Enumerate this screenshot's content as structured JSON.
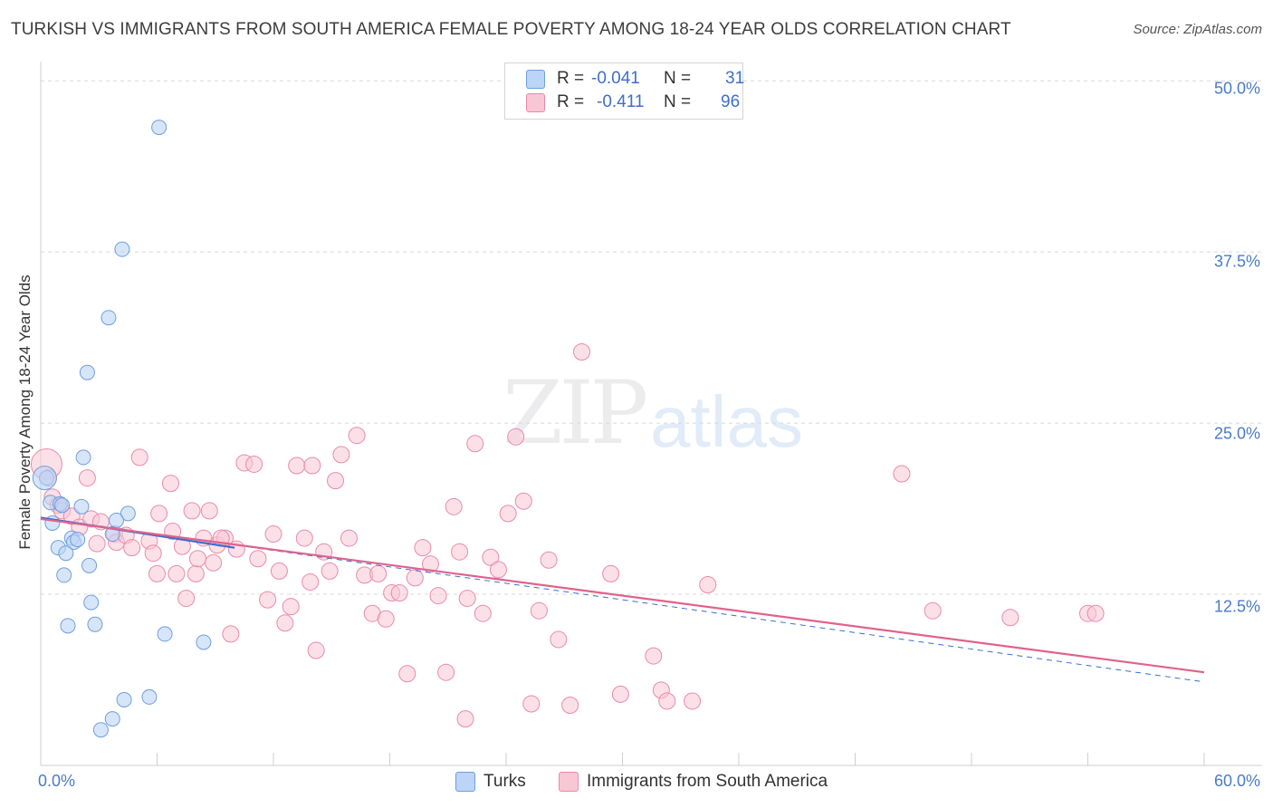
{
  "title": "TURKISH VS IMMIGRANTS FROM SOUTH AMERICA FEMALE POVERTY AMONG 18-24 YEAR OLDS CORRELATION CHART",
  "source": "Source: ZipAtlas.com",
  "watermark": {
    "zip": "ZIP",
    "atlas": "atlas"
  },
  "stats": {
    "turks": {
      "r_label": "R =",
      "r_value": "-0.041",
      "n_label": "N =",
      "n_value": "31"
    },
    "immigrants": {
      "r_label": "R =",
      "r_value": "-0.411",
      "n_label": "N =",
      "n_value": "96"
    }
  },
  "legend": {
    "turks": "Turks",
    "immigrants": "Immigrants from South America"
  },
  "colors": {
    "turks_fill": "#bcd4f5",
    "turks_stroke": "#6f9fdc",
    "turks_line": "#3a6fd0",
    "imm_fill": "#f9c6d6",
    "imm_stroke": "#e98aaa",
    "imm_line": "#e0628c",
    "grid": "#d8d8d8",
    "tick_label": "#4a7bc8"
  },
  "chart_data": {
    "type": "scatter",
    "title": "TURKISH VS IMMIGRANTS FROM SOUTH AMERICA FEMALE POVERTY AMONG 18-24 YEAR OLDS CORRELATION CHART",
    "xlabel": "",
    "ylabel": "Female Poverty Among 18-24 Year Olds",
    "xlim": [
      0,
      60
    ],
    "ylim": [
      0,
      52
    ],
    "x_tick_labels": [
      "0.0%",
      "60.0%"
    ],
    "y_ticks": [
      12.5,
      25.0,
      37.5,
      50.0
    ],
    "y_tick_labels": [
      "12.5%",
      "25.0%",
      "37.5%",
      "50.0%"
    ],
    "grid": true,
    "series": [
      {
        "name": "Turks",
        "points": [
          [
            6.1,
            46.6
          ],
          [
            4.2,
            37.7
          ],
          [
            3.5,
            32.7
          ],
          [
            2.4,
            28.7
          ],
          [
            2.2,
            22.5
          ],
          [
            0.3,
            21.0
          ],
          [
            0.5,
            19.2
          ],
          [
            1.0,
            19.1
          ],
          [
            2.1,
            18.9
          ],
          [
            4.5,
            18.4
          ],
          [
            0.6,
            17.7
          ],
          [
            3.9,
            17.9
          ],
          [
            3.7,
            16.9
          ],
          [
            1.6,
            16.6
          ],
          [
            1.7,
            16.3
          ],
          [
            1.9,
            16.5
          ],
          [
            0.9,
            15.9
          ],
          [
            1.3,
            15.5
          ],
          [
            2.5,
            14.6
          ],
          [
            1.2,
            13.9
          ],
          [
            2.6,
            11.9
          ],
          [
            1.4,
            10.2
          ],
          [
            2.8,
            10.3
          ],
          [
            6.4,
            9.6
          ],
          [
            8.4,
            9.0
          ],
          [
            4.3,
            4.8
          ],
          [
            5.6,
            5.0
          ],
          [
            3.7,
            3.4
          ],
          [
            3.1,
            2.6
          ],
          [
            0.2,
            21.0
          ],
          [
            1.1,
            19.0
          ]
        ]
      },
      {
        "name": "Immigrants from South America",
        "points": [
          [
            0.3,
            22.0
          ],
          [
            0.4,
            21.0
          ],
          [
            0.6,
            19.6
          ],
          [
            0.9,
            19.0
          ],
          [
            1.1,
            18.6
          ],
          [
            1.6,
            18.2
          ],
          [
            2.0,
            17.4
          ],
          [
            2.4,
            21.0
          ],
          [
            2.6,
            18.0
          ],
          [
            2.9,
            16.2
          ],
          [
            3.1,
            17.8
          ],
          [
            3.8,
            16.9
          ],
          [
            3.9,
            16.3
          ],
          [
            4.4,
            16.8
          ],
          [
            4.7,
            15.9
          ],
          [
            5.1,
            22.5
          ],
          [
            5.6,
            16.4
          ],
          [
            5.8,
            15.5
          ],
          [
            6.0,
            14.0
          ],
          [
            6.1,
            18.4
          ],
          [
            6.7,
            20.6
          ],
          [
            6.8,
            17.1
          ],
          [
            7.0,
            14.0
          ],
          [
            7.3,
            16.0
          ],
          [
            7.5,
            12.2
          ],
          [
            7.8,
            18.6
          ],
          [
            8.0,
            14.0
          ],
          [
            8.1,
            15.1
          ],
          [
            8.4,
            16.6
          ],
          [
            8.7,
            18.6
          ],
          [
            8.9,
            14.8
          ],
          [
            9.1,
            16.1
          ],
          [
            9.5,
            16.6
          ],
          [
            9.8,
            9.6
          ],
          [
            10.1,
            15.8
          ],
          [
            10.5,
            22.1
          ],
          [
            11.0,
            22.0
          ],
          [
            11.2,
            15.1
          ],
          [
            11.7,
            12.1
          ],
          [
            12.0,
            16.9
          ],
          [
            12.3,
            14.2
          ],
          [
            12.6,
            10.4
          ],
          [
            12.9,
            11.6
          ],
          [
            13.2,
            21.9
          ],
          [
            13.6,
            16.6
          ],
          [
            13.9,
            13.4
          ],
          [
            14.2,
            8.4
          ],
          [
            14.6,
            15.6
          ],
          [
            14.9,
            14.2
          ],
          [
            15.2,
            20.8
          ],
          [
            15.5,
            22.7
          ],
          [
            15.9,
            16.6
          ],
          [
            16.3,
            24.1
          ],
          [
            16.7,
            13.9
          ],
          [
            17.1,
            11.1
          ],
          [
            17.4,
            14.0
          ],
          [
            17.8,
            10.7
          ],
          [
            18.1,
            12.6
          ],
          [
            18.5,
            12.6
          ],
          [
            18.9,
            6.7
          ],
          [
            19.3,
            13.7
          ],
          [
            19.7,
            15.9
          ],
          [
            20.1,
            14.7
          ],
          [
            20.5,
            12.4
          ],
          [
            20.9,
            6.8
          ],
          [
            21.3,
            18.9
          ],
          [
            21.6,
            15.6
          ],
          [
            22.0,
            12.2
          ],
          [
            22.4,
            23.5
          ],
          [
            22.8,
            11.1
          ],
          [
            23.2,
            15.2
          ],
          [
            23.6,
            14.3
          ],
          [
            24.1,
            18.4
          ],
          [
            24.5,
            24.0
          ],
          [
            24.9,
            19.3
          ],
          [
            25.3,
            4.5
          ],
          [
            25.7,
            11.3
          ],
          [
            26.2,
            15.0
          ],
          [
            26.7,
            9.2
          ],
          [
            27.3,
            4.4
          ],
          [
            27.9,
            30.2
          ],
          [
            29.4,
            14.0
          ],
          [
            29.9,
            5.2
          ],
          [
            31.6,
            8.0
          ],
          [
            32.0,
            5.5
          ],
          [
            32.3,
            4.7
          ],
          [
            33.6,
            4.7
          ],
          [
            34.4,
            13.2
          ],
          [
            44.4,
            21.3
          ],
          [
            46.0,
            11.3
          ],
          [
            50.0,
            10.8
          ],
          [
            54.0,
            11.1
          ],
          [
            54.4,
            11.1
          ],
          [
            14.0,
            21.9
          ],
          [
            9.3,
            16.6
          ],
          [
            21.9,
            3.4
          ]
        ]
      }
    ],
    "trendlines": [
      {
        "series": "Turks",
        "style": "solid",
        "x": [
          0,
          10
        ],
        "y": [
          18.1,
          15.9
        ]
      },
      {
        "series": "Turks",
        "style": "dashed",
        "x": [
          0,
          60
        ],
        "y": [
          18.1,
          6.1
        ]
      },
      {
        "series": "Immigrants from South America",
        "style": "solid",
        "x": [
          0,
          60
        ],
        "y": [
          18.0,
          6.8
        ]
      }
    ]
  }
}
